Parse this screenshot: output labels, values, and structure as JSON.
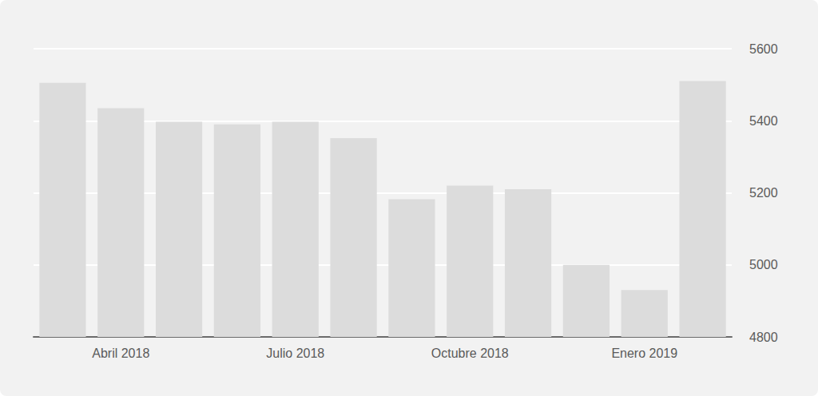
{
  "chart_data": {
    "type": "bar",
    "categories": [
      null,
      "Abril 2018",
      null,
      null,
      "Julio 2018",
      null,
      null,
      "Octubre 2018",
      null,
      null,
      "Enero 2019",
      null
    ],
    "values": [
      5505,
      5435,
      5397,
      5390,
      5397,
      5352,
      5182,
      5220,
      5210,
      5000,
      4930,
      5510
    ],
    "color": "#dcdcdc",
    "ylim": [
      4800,
      5600
    ],
    "yticks": [
      4800,
      5000,
      5200,
      5400,
      5600
    ],
    "grid": true
  }
}
